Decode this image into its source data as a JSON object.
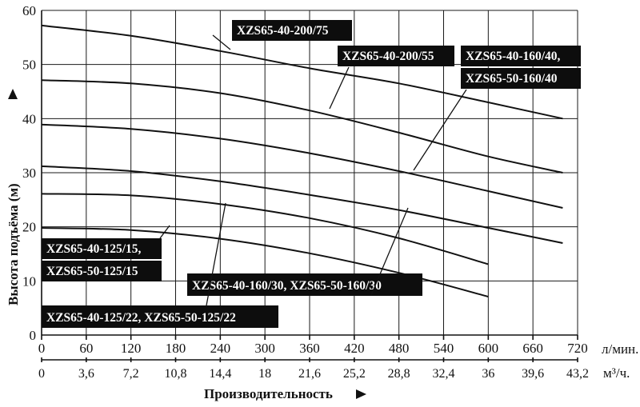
{
  "chart_data": {
    "type": "line",
    "xlabel": "Производительность",
    "ylabel": "Высота подъёма (м)",
    "x_unit": "л/мин.",
    "x2_unit": "м³/ч.",
    "xlim": [
      0,
      720
    ],
    "ylim": [
      0,
      60
    ],
    "x_ticks": [
      "0",
      "60",
      "120",
      "180",
      "240",
      "300",
      "360",
      "420",
      "480",
      "540",
      "600",
      "660",
      "720"
    ],
    "x2_ticks": [
      "0",
      "3,6",
      "7,2",
      "10,8",
      "14,4",
      "18",
      "21,6",
      "25,2",
      "28,8",
      "32,4",
      "36",
      "39,6",
      "43,2"
    ],
    "y_ticks": [
      "0",
      "10",
      "20",
      "30",
      "40",
      "50",
      "60"
    ],
    "grid": true,
    "series": [
      {
        "name": "XZS65-40-200/75",
        "x": [
          0,
          120,
          240,
          360,
          480,
          600,
          700
        ],
        "y": [
          57.2,
          55.3,
          52.5,
          49.3,
          46.5,
          43,
          40
        ]
      },
      {
        "name": "XZS65-40-200/55",
        "x": [
          0,
          120,
          240,
          360,
          480,
          600,
          700
        ],
        "y": [
          47.1,
          46.5,
          44.7,
          41.5,
          37.4,
          33,
          30
        ]
      },
      {
        "name": "XZS65-40-160/40, XZS65-50-160/40",
        "x": [
          0,
          120,
          240,
          360,
          480,
          600,
          700
        ],
        "y": [
          38.9,
          38.1,
          36.3,
          33.6,
          30.3,
          26.6,
          23.5
        ]
      },
      {
        "name": "XZS65-40-160/30, XZS65-50-160/30",
        "x": [
          0,
          120,
          240,
          360,
          480,
          600,
          700
        ],
        "y": [
          31.2,
          30.3,
          28.4,
          25.9,
          23.1,
          19.8,
          17
        ]
      },
      {
        "name": "XZS65-40-125/22, XZS65-50-125/22",
        "x": [
          0,
          120,
          240,
          360,
          480,
          600
        ],
        "y": [
          26.1,
          25.8,
          24.2,
          21.6,
          17.9,
          13.1
        ]
      },
      {
        "name": "XZS65-40-125/15, XZS65-50-125/15",
        "x": [
          0,
          120,
          240,
          360,
          480,
          600
        ],
        "y": [
          19.8,
          19.4,
          17.8,
          15.1,
          11.5,
          7.1
        ]
      }
    ],
    "labels": [
      {
        "text": "XZS65-40-200/75"
      },
      {
        "text": "XZS65-40-200/55"
      },
      {
        "text": "XZS65-40-160/40,"
      },
      {
        "text": "XZS65-50-160/40"
      },
      {
        "text": "XZS65-40-125/15,"
      },
      {
        "text": "XZS65-50-125/15"
      },
      {
        "text": "XZS65-40-160/30, XZS65-50-160/30"
      },
      {
        "text": "XZS65-40-125/22, XZS65-50-125/22"
      }
    ]
  }
}
